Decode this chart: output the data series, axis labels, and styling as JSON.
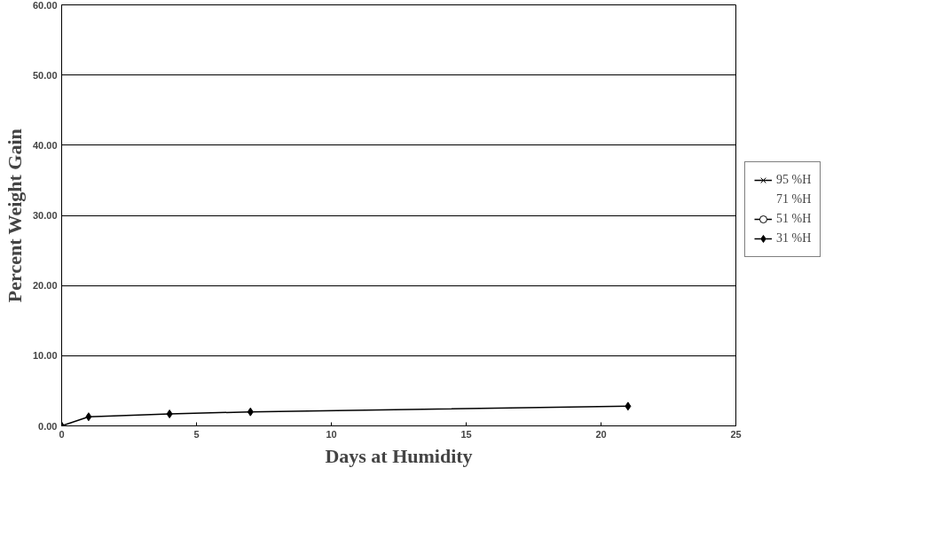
{
  "chart_data": {
    "type": "line",
    "xlabel": "Days at Humidity",
    "ylabel": "Percent Weight Gain",
    "xlim": [
      0,
      25
    ],
    "xticks": [
      0,
      5,
      10,
      15,
      20,
      25
    ],
    "ylim": [
      0,
      60
    ],
    "yticks": [
      {
        "value": 0,
        "label": "0.00"
      },
      {
        "value": 10,
        "label": "10.00"
      },
      {
        "value": 20,
        "label": "20.00"
      },
      {
        "value": 30,
        "label": "30.00"
      },
      {
        "value": 40,
        "label": "40.00"
      },
      {
        "value": 50,
        "label": "50.00"
      },
      {
        "value": 60,
        "label": "60.00"
      }
    ],
    "grid": "y",
    "legend": "right",
    "series": [
      {
        "name": "95 %H",
        "color": "#000000",
        "marker": "cross"
      },
      {
        "name": "71 %H"
      },
      {
        "name": "51 %H",
        "color": "#000000",
        "marker": "circle"
      },
      {
        "name": "31 %H",
        "color": "#000000",
        "marker": "diamond",
        "x": [
          0,
          1,
          4,
          7,
          21
        ],
        "values": [
          0,
          1.3,
          1.7,
          2.0,
          2.8
        ]
      }
    ]
  }
}
